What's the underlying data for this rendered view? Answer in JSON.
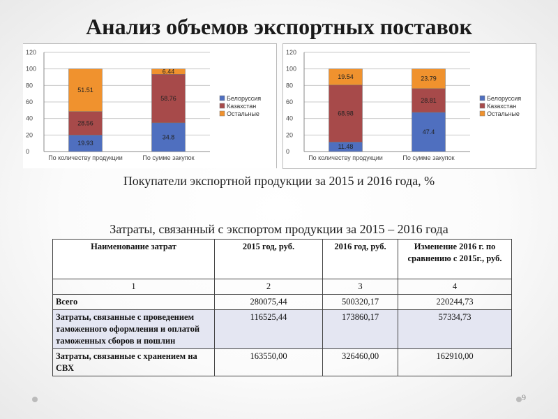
{
  "title": "Анализ объемов экспортных поставок",
  "subtitle_buyers": "Покупатели экспортной продукции за 2015 и 2016 года, %",
  "subtitle_costs": "Затраты, связанный с экспортом продукции за 2015 – 2016 года",
  "page_number": "9",
  "chart_data": [
    {
      "type": "bar",
      "stacked": true,
      "categories": [
        "По количеству продукции",
        "По сумме закупок"
      ],
      "series": [
        {
          "name": "Белоруссия",
          "values": [
            19.93,
            34.8
          ],
          "color": "#4f6fbf"
        },
        {
          "name": "Казахстан",
          "values": [
            28.56,
            58.76
          ],
          "color": "#a74a4a"
        },
        {
          "name": "Остальные",
          "values": [
            51.51,
            6.44
          ],
          "color": "#f0922e"
        }
      ],
      "ylim": [
        0,
        120
      ],
      "yticks": [
        "0",
        "20",
        "40",
        "60",
        "80",
        "100",
        "120"
      ],
      "grid": true,
      "legend": "right"
    },
    {
      "type": "bar",
      "stacked": true,
      "categories": [
        "По количеству продукции",
        "По сумме закупок"
      ],
      "series": [
        {
          "name": "Белоруссия",
          "values": [
            11.48,
            47.4
          ],
          "color": "#4f6fbf"
        },
        {
          "name": "Казахстан",
          "values": [
            68.98,
            28.81
          ],
          "color": "#a74a4a"
        },
        {
          "name": "Остальные",
          "values": [
            19.54,
            23.79
          ],
          "color": "#f0922e"
        }
      ],
      "ylim": [
        0,
        120
      ],
      "yticks": [
        "0",
        "20",
        "40",
        "60",
        "80",
        "100",
        "120"
      ],
      "grid": true,
      "legend": "right"
    }
  ],
  "table": {
    "headers": [
      "Наименование затрат",
      "2015 год, руб.",
      "2016 год, руб.",
      "Изменение 2016 г. по сравнению с 2015г., руб."
    ],
    "index_row": [
      "1",
      "2",
      "3",
      "4"
    ],
    "rows": [
      [
        "Всего",
        "280075,44",
        "500320,17",
        "220244,73"
      ],
      [
        "Затраты, связанные с проведением таможенного оформления и оплатой таможенных сборов и пошлин",
        "116525,44",
        "173860,17",
        "57334,73"
      ],
      [
        "Затраты, связанные с хранением на СВХ",
        "163550,00",
        "326460,00",
        "162910,00"
      ]
    ]
  }
}
